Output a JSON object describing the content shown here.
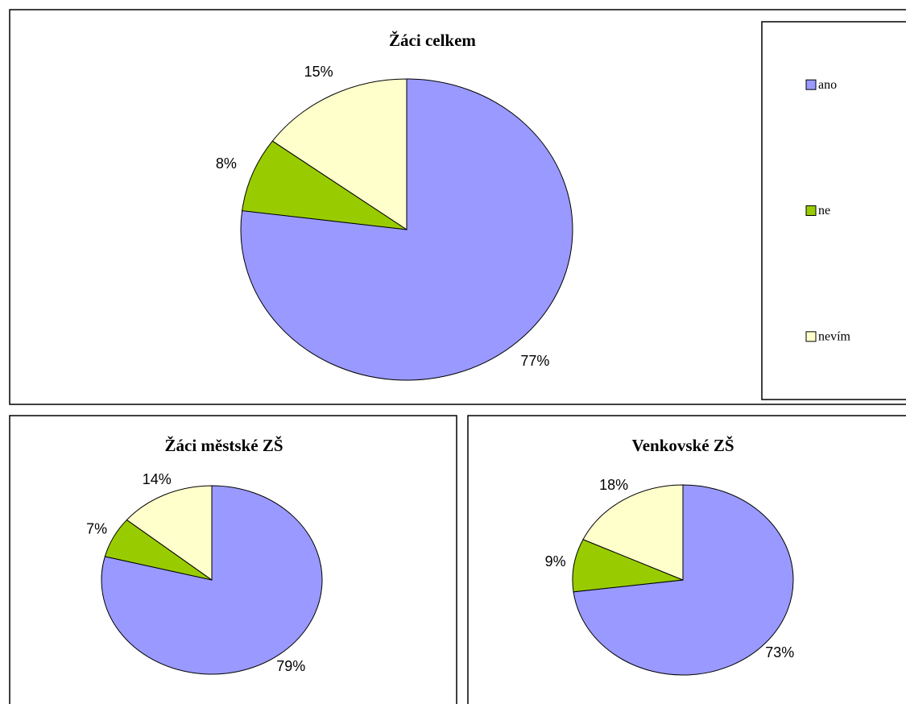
{
  "chart_data": [
    {
      "type": "pie",
      "title": "Žáci celkem",
      "categories": [
        "ano",
        "ne",
        "nevím"
      ],
      "values": [
        77,
        8,
        15
      ],
      "value_labels": [
        "77%",
        "8%",
        "15%"
      ],
      "colors": [
        "#9999ff",
        "#99cc00",
        "#ffffcc"
      ],
      "legend": "right"
    },
    {
      "type": "pie",
      "title": "Žáci městské ZŠ",
      "values": [
        79,
        7,
        14
      ],
      "value_labels": [
        "79%",
        "7%",
        "14%"
      ],
      "colors": [
        "#9999ff",
        "#99cc00",
        "#ffffcc"
      ]
    },
    {
      "type": "pie",
      "title": "Venkovské ZŠ",
      "values": [
        73,
        9,
        18
      ],
      "value_labels": [
        "73%",
        "9%",
        "18%"
      ],
      "colors": [
        "#9999ff",
        "#99cc00",
        "#ffffcc"
      ]
    }
  ]
}
